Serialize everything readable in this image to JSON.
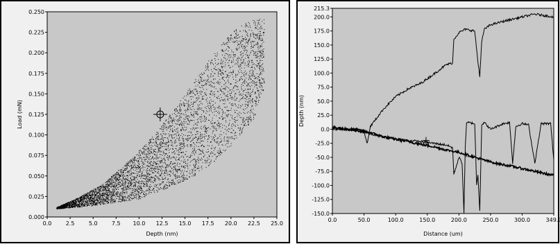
{
  "colors": {
    "plot_bg": "#c8c8c8",
    "frame": "#000000",
    "panel_bg": "#f0f0f0",
    "trace": "#000000"
  },
  "chart_data": [
    {
      "type": "scatter",
      "title": "",
      "xlabel": "Depth (nm)",
      "ylabel": "Load (mN)",
      "xlim": [
        0,
        25
      ],
      "ylim": [
        0,
        0.25
      ],
      "x_ticks": [
        "0.0",
        "2.5",
        "5.0",
        "7.5",
        "10.0",
        "12.5",
        "15.0",
        "17.5",
        "20.0",
        "22.5",
        "25.0"
      ],
      "y_ticks": [
        "0.000",
        "0.025",
        "0.050",
        "0.075",
        "0.100",
        "0.125",
        "0.150",
        "0.175",
        "0.200",
        "0.225",
        "0.250"
      ],
      "point_count": 5000,
      "envelope": {
        "lower_edge": [
          [
            1.0,
            0.01
          ],
          [
            5.0,
            0.014
          ],
          [
            10.0,
            0.022
          ],
          [
            13.0,
            0.035
          ],
          [
            16.0,
            0.05
          ],
          [
            19.0,
            0.075
          ],
          [
            21.0,
            0.1
          ],
          [
            22.5,
            0.12
          ],
          [
            23.2,
            0.15
          ]
        ],
        "upper_edge": [
          [
            1.0,
            0.012
          ],
          [
            3.0,
            0.022
          ],
          [
            6.0,
            0.04
          ],
          [
            9.0,
            0.07
          ],
          [
            12.0,
            0.105
          ],
          [
            15.0,
            0.15
          ],
          [
            17.5,
            0.19
          ],
          [
            20.0,
            0.225
          ],
          [
            22.0,
            0.24
          ],
          [
            23.5,
            0.242
          ]
        ]
      },
      "crosshair": {
        "x": 12.3,
        "y": 0.125
      }
    },
    {
      "type": "line",
      "title": "",
      "xlabel": "Distance (um)",
      "ylabel": "Depth (nm)",
      "xlim": [
        0,
        349.9
      ],
      "ylim": [
        -150,
        215.3
      ],
      "x_ticks": [
        "0.0",
        "50.0",
        "100.0",
        "150.0",
        "200.0",
        "250.0",
        "300.0",
        "349.9"
      ],
      "x_tick_values": [
        0,
        50,
        100,
        150,
        200,
        250,
        300,
        349.9
      ],
      "y_ticks": [
        "215.3",
        "200.0",
        "175.0",
        "150.0",
        "125.0",
        "100.0",
        "75.0",
        "50.0",
        "25.0",
        "0.0",
        "-25.0",
        "-50.0",
        "-75.0",
        "-100.0",
        "-125.0",
        "-150.0"
      ],
      "y_tick_values": [
        215.3,
        200,
        175,
        150,
        125,
        100,
        75,
        50,
        25,
        0,
        -25,
        -50,
        -75,
        -100,
        -125,
        -150
      ],
      "series": [
        {
          "x": [
            0,
            20,
            40,
            50,
            55,
            60,
            80,
            100,
            120,
            140,
            160,
            180,
            190,
            192,
            200,
            210,
            225,
            230,
            233,
            236,
            240,
            250,
            270,
            300,
            320,
            349.9
          ],
          "y": [
            0,
            0,
            -3,
            -5,
            -25,
            5,
            35,
            58,
            72,
            82,
            98,
            115,
            118,
            160,
            172,
            178,
            175,
            120,
            95,
            155,
            178,
            186,
            192,
            200,
            205,
            200
          ]
        },
        {
          "x": [
            0,
            20,
            40,
            60,
            80,
            100,
            120,
            140,
            160,
            180,
            200,
            220,
            240,
            260,
            280,
            300,
            320,
            340,
            349.9
          ],
          "y": [
            3,
            1,
            -1,
            -6,
            -13,
            -18,
            -22,
            -27,
            -31,
            -37,
            -41,
            -48,
            -55,
            -61,
            -65,
            -70,
            -75,
            -80,
            -82
          ]
        },
        {
          "x": [
            0,
            20,
            40,
            60,
            80,
            100,
            120,
            140,
            160,
            180,
            190,
            192,
            200,
            205,
            208,
            210,
            212,
            215,
            225,
            228,
            230,
            233,
            236,
            240,
            250,
            270,
            280,
            285,
            290,
            300,
            310,
            320,
            330,
            345,
            349.9
          ],
          "y": [
            2,
            0,
            -3,
            -8,
            -14,
            -17,
            -20,
            -22,
            -25,
            -28,
            -33,
            -80,
            -50,
            -60,
            -150,
            -30,
            10,
            12,
            10,
            -100,
            -80,
            -145,
            8,
            12,
            0,
            10,
            12,
            -60,
            5,
            10,
            8,
            -60,
            10,
            10,
            -55
          ]
        }
      ],
      "crosshair": {
        "x": 148,
        "y": -20
      }
    }
  ]
}
